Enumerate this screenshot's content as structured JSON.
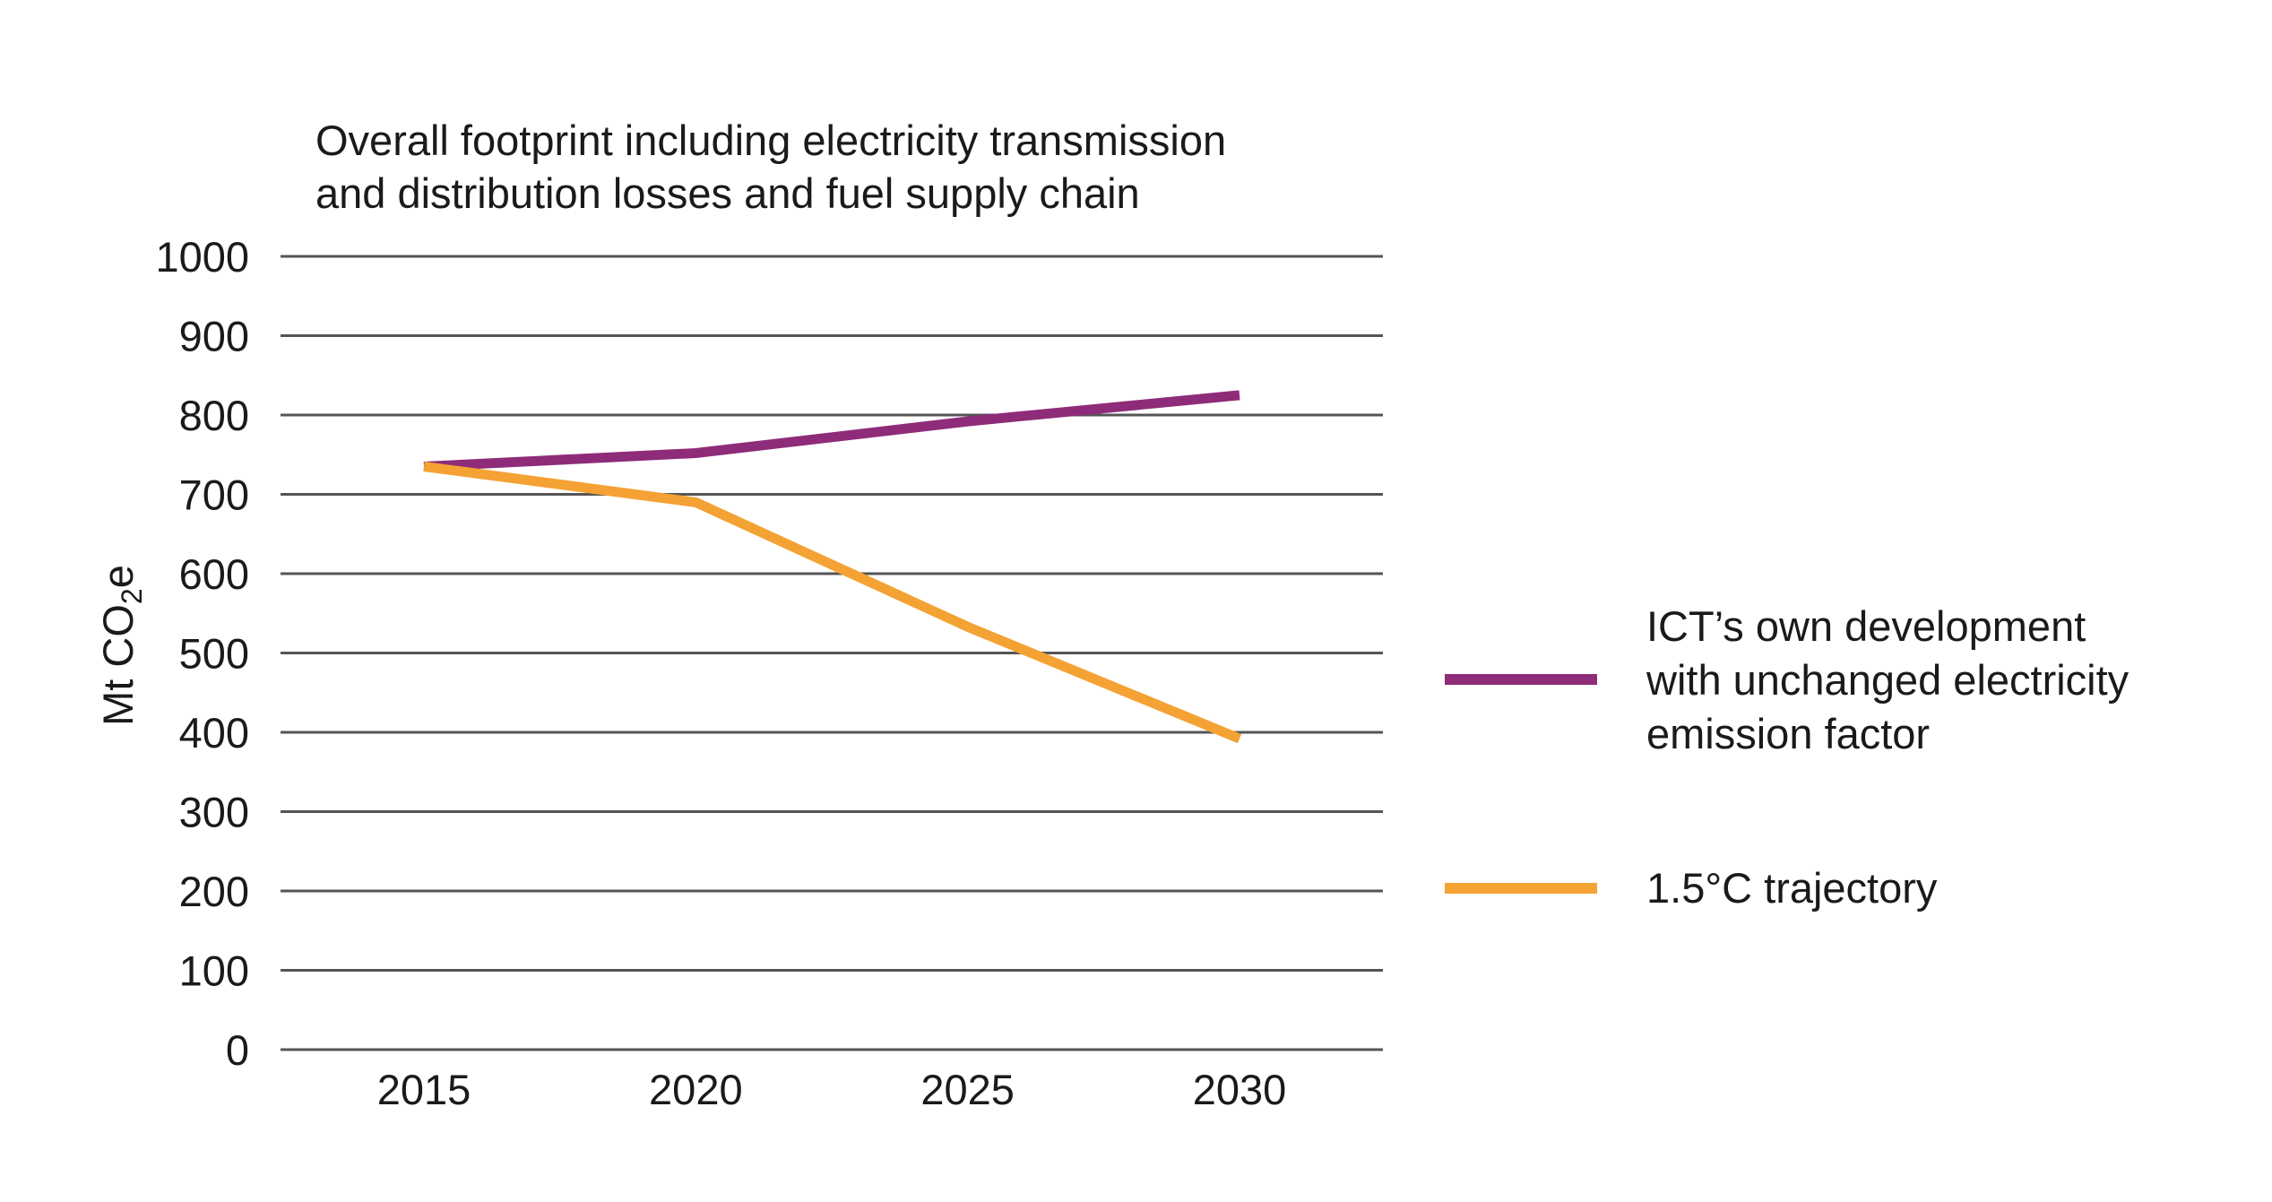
{
  "chart_data": {
    "type": "line",
    "title_lines": [
      "Overall footprint including electricity transmission",
      "and distribution losses and fuel supply chain"
    ],
    "ylabel": {
      "main": "Mt CO",
      "subscript": "2",
      "suffix": "e"
    },
    "xlabel": "",
    "x": [
      "2015",
      "2020",
      "2025",
      "2030"
    ],
    "ylim": [
      0,
      1000
    ],
    "yticks": [
      0,
      100,
      200,
      300,
      400,
      500,
      600,
      700,
      800,
      900,
      1000
    ],
    "grid": "horizontal",
    "legend_position": "right",
    "series": [
      {
        "name_lines": [
          "ICT’s own development",
          "with unchanged electricity",
          "emission factor"
        ],
        "color": "#8e2c7a",
        "points": [
          [
            2015,
            735
          ],
          [
            2020,
            752
          ],
          [
            2025,
            792
          ],
          [
            2030,
            825
          ]
        ]
      },
      {
        "name_lines": [
          "1.5°C trajectory"
        ],
        "color": "#f4a234",
        "points": [
          [
            2015,
            735
          ],
          [
            2020,
            690
          ],
          [
            2025,
            533
          ],
          [
            2030,
            392
          ]
        ]
      }
    ],
    "colors": {
      "grid": "#555555",
      "text": "#1a1a1a"
    }
  }
}
